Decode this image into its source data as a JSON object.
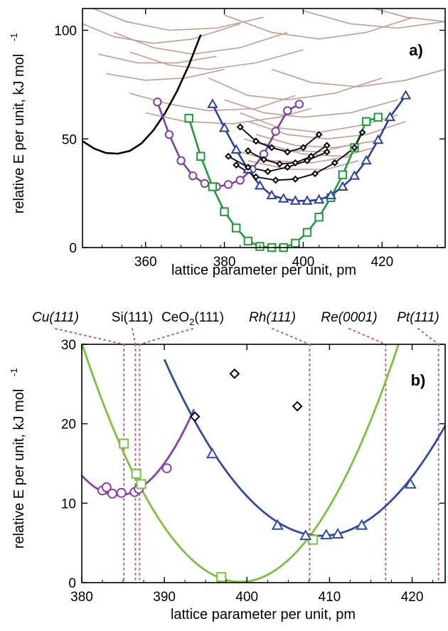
{
  "chart_data": [
    {
      "type": "line",
      "panel_label": "a)",
      "xlabel": "lattice parameter per unit, pm",
      "ylabel": "relative E per unit, kJ mol",
      "ylabel_sup": "-1",
      "xlim": [
        344,
        436
      ],
      "ylim": [
        0,
        110
      ],
      "xticks": [
        360,
        380,
        400,
        420
      ],
      "yticks": [
        0,
        50,
        100
      ],
      "grid": false,
      "background_curves": {
        "color": "#c49a94",
        "curves": [
          [
            [
              344,
              112
            ],
            [
              355,
              104
            ],
            [
              366,
              100
            ],
            [
              378,
              101
            ],
            [
              390,
              106
            ]
          ],
          [
            [
              344,
              103
            ],
            [
              352,
              97
            ],
            [
              362,
              94
            ],
            [
              372,
              96
            ],
            [
              384,
              103
            ]
          ],
          [
            [
              352,
              99
            ],
            [
              362,
              92
            ],
            [
              372,
              89
            ],
            [
              384,
              92
            ],
            [
              396,
              99
            ]
          ],
          [
            [
              356,
              90
            ],
            [
              366,
              84
            ],
            [
              376,
              82
            ],
            [
              388,
              85
            ],
            [
              400,
              91
            ]
          ],
          [
            [
              348,
              89
            ],
            [
              358,
              85
            ],
            [
              368,
              85
            ],
            [
              378,
              88
            ]
          ],
          [
            [
              350,
              80
            ],
            [
              360,
              77
            ],
            [
              370,
              78
            ],
            [
              380,
              82
            ]
          ],
          [
            [
              356,
              71
            ],
            [
              366,
              66
            ],
            [
              376,
              63
            ],
            [
              388,
              64
            ],
            [
              398,
              70
            ]
          ],
          [
            [
              360,
              62
            ],
            [
              370,
              58
            ],
            [
              382,
              57
            ],
            [
              394,
              60
            ],
            [
              402,
              64
            ]
          ],
          [
            [
              380,
              107
            ],
            [
              392,
              99
            ],
            [
              404,
              96
            ],
            [
              416,
              99
            ],
            [
              428,
              106
            ]
          ],
          [
            [
              400,
              109
            ],
            [
              412,
              103
            ],
            [
              424,
              101
            ],
            [
              436,
              104
            ]
          ],
          [
            [
              414,
              112
            ],
            [
              426,
              106
            ],
            [
              436,
              104
            ]
          ],
          [
            [
              376,
              78
            ],
            [
              386,
              70
            ],
            [
              396,
              68
            ],
            [
              408,
              71
            ],
            [
              420,
              78
            ]
          ],
          [
            [
              392,
              82
            ],
            [
              402,
              76
            ],
            [
              414,
              74
            ],
            [
              426,
              77
            ],
            [
              436,
              82
            ]
          ],
          [
            [
              380,
              68
            ],
            [
              390,
              62
            ],
            [
              400,
              60
            ],
            [
              412,
              62
            ],
            [
              424,
              68
            ]
          ],
          [
            [
              384,
              62
            ],
            [
              394,
              55
            ],
            [
              404,
              53
            ],
            [
              414,
              56
            ],
            [
              424,
              61
            ]
          ],
          [
            [
              386,
              58
            ],
            [
              396,
              52
            ],
            [
              406,
              50
            ],
            [
              416,
              52
            ],
            [
              426,
              58
            ]
          ],
          [
            [
              388,
              52
            ],
            [
              398,
              47
            ],
            [
              408,
              46
            ],
            [
              418,
              49
            ]
          ],
          [
            [
              390,
              48
            ],
            [
              400,
              43
            ],
            [
              410,
              42
            ],
            [
              418,
              46
            ]
          ],
          [
            [
              385,
              50
            ],
            [
              394,
              45
            ],
            [
              404,
              44
            ],
            [
              414,
              48
            ]
          ],
          [
            [
              382,
              45
            ],
            [
              392,
              40
            ],
            [
              402,
              39
            ],
            [
              412,
              42
            ]
          ],
          [
            [
              386,
              40
            ],
            [
              396,
              36
            ],
            [
              406,
              36
            ],
            [
              414,
              40
            ]
          ]
        ]
      },
      "series": [
        {
          "color": "#000000",
          "marker": "none",
          "x": [
            344,
            347,
            350,
            353,
            356,
            359,
            362,
            365,
            368,
            371,
            374
          ],
          "y": [
            49,
            45.5,
            43.5,
            43.2,
            44.5,
            48,
            54,
            62,
            72,
            84,
            98
          ]
        },
        {
          "color": "#7b3fa8",
          "marker": "circle",
          "x": [
            363,
            366,
            369,
            372,
            375,
            378,
            381,
            384,
            387,
            390,
            393,
            396,
            399
          ],
          "y": [
            67,
            52,
            40,
            33,
            29.5,
            28,
            29,
            31,
            36,
            43,
            53.5,
            63,
            66
          ]
        },
        {
          "color": "#1e9a3a",
          "marker": "square",
          "x": [
            371,
            374,
            377,
            380,
            383,
            386,
            389,
            392,
            395,
            398,
            401,
            404,
            407,
            410,
            413,
            416,
            419
          ],
          "y": [
            59.5,
            42,
            28,
            16.5,
            9,
            3,
            0.5,
            0,
            0,
            2,
            7,
            14,
            23,
            33.5,
            46,
            58,
            60
          ]
        },
        {
          "color": "#2b3f9e",
          "marker": "triangle",
          "x": [
            377,
            380,
            383,
            386,
            389,
            392,
            395,
            398,
            401,
            404,
            407,
            410,
            413,
            416,
            419,
            422,
            426
          ],
          "y": [
            66,
            55,
            45,
            36,
            28.5,
            24,
            22.5,
            21.5,
            21.5,
            22,
            24,
            28,
            33,
            40,
            49.5,
            60,
            70
          ]
        },
        {
          "color": "#000000",
          "marker": "diamond",
          "x": [
            384,
            388,
            392,
            396,
            400,
            404
          ],
          "y": [
            55.5,
            49,
            46,
            44,
            46,
            52
          ]
        },
        {
          "color": "#000000",
          "marker": "diamond",
          "x": [
            381,
            386,
            391,
            396,
            401,
            406
          ],
          "y": [
            42,
            37,
            35,
            37,
            40,
            44
          ]
        },
        {
          "color": "#000000",
          "marker": "diamond",
          "x": [
            383,
            388,
            393,
            398,
            403,
            408,
            413,
            415
          ],
          "y": [
            38,
            32.5,
            31,
            31.5,
            34,
            39,
            46,
            53
          ]
        },
        {
          "color": "#000000",
          "marker": "diamond",
          "x": [
            386,
            390,
            394,
            398,
            402,
            406
          ],
          "y": [
            44.5,
            40.5,
            38.5,
            39,
            42,
            47
          ]
        }
      ]
    },
    {
      "type": "line",
      "panel_label": "b)",
      "xlabel": "lattice parameter per unit, pm",
      "ylabel": "relative E per unit, kJ mol",
      "ylabel_sup": "-1",
      "xlim": [
        380,
        424
      ],
      "ylim": [
        0,
        30
      ],
      "xticks": [
        380,
        390,
        400,
        410,
        420
      ],
      "yticks": [
        0,
        10,
        20,
        30
      ],
      "grid": false,
      "reference_lines": [
        {
          "label": "Cu(111)",
          "x": 385.1,
          "italic": true
        },
        {
          "label": "Si(111)",
          "x": 386.5,
          "italic": false
        },
        {
          "label": "CeO₂(111)",
          "x": 387.0,
          "italic": false
        },
        {
          "label": "Rh(111)",
          "x": 407.6,
          "italic": true
        },
        {
          "label": "Re(0001)",
          "x": 416.8,
          "italic": true
        },
        {
          "label": "Pt(111)",
          "x": 423.2,
          "italic": true
        }
      ],
      "reference_line_color": "#c0606a",
      "series": [
        {
          "color": "#8a3fb0",
          "marker": "circle",
          "fit": {
            "x0": 384.4,
            "y0": 11.0,
            "k": 0.128,
            "x_from": 380,
            "x_to": 393.6
          },
          "points": [
            [
              382.5,
              11.6
            ],
            [
              383.0,
              12.0
            ],
            [
              383.7,
              11.2
            ],
            [
              384.8,
              11.3
            ],
            [
              386.4,
              11.4
            ],
            [
              386.9,
              11.8
            ],
            [
              390.3,
              14.4
            ]
          ]
        },
        {
          "color": "#7ac142",
          "marker": "square",
          "fit": {
            "x0": 399.2,
            "y0": 0.1,
            "k": 0.0815,
            "x_from": 380,
            "x_to": 418.4
          },
          "points": [
            [
              385.1,
              17.5
            ],
            [
              386.6,
              13.7
            ],
            [
              387.2,
              12.4
            ],
            [
              396.9,
              0.7
            ],
            [
              408.0,
              5.4
            ]
          ]
        },
        {
          "color": "#2e4aa4",
          "marker": "triangle",
          "fit": {
            "x0": 409.0,
            "y0": 5.9,
            "k": 0.0615,
            "x_from": 390.0,
            "x_to": 424
          },
          "points": [
            [
              395.8,
              16.2
            ],
            [
              403.7,
              7.2
            ],
            [
              407.1,
              5.9
            ],
            [
              409.6,
              6.0
            ],
            [
              411.0,
              6.1
            ],
            [
              413.9,
              7.2
            ],
            [
              419.8,
              12.4
            ]
          ]
        },
        {
          "color": "#000000",
          "marker": "diamond",
          "points": [
            [
              393.7,
              20.9
            ],
            [
              398.5,
              26.3
            ],
            [
              406.1,
              22.2
            ]
          ]
        }
      ]
    }
  ]
}
